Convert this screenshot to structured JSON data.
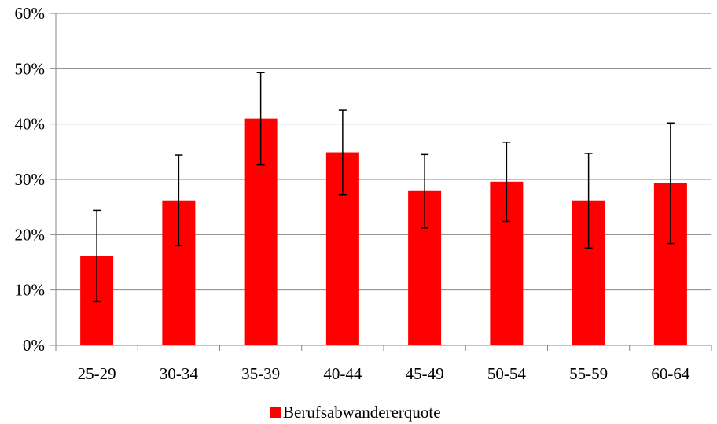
{
  "chart_data": {
    "type": "bar",
    "categories": [
      "25-29",
      "30-34",
      "35-39",
      "40-44",
      "45-49",
      "50-54",
      "55-59",
      "60-64"
    ],
    "series": [
      {
        "name": "Berufsabwandererquote",
        "values": [
          16.1,
          26.2,
          41.0,
          34.9,
          27.9,
          29.6,
          26.2,
          29.4
        ],
        "error_low": [
          7.9,
          18.0,
          32.6,
          27.2,
          21.2,
          22.4,
          17.6,
          18.4
        ],
        "error_high": [
          24.4,
          34.4,
          49.3,
          42.5,
          34.5,
          36.7,
          34.7,
          40.2
        ],
        "color": "#ff0000"
      }
    ],
    "y_ticks": [
      "0%",
      "10%",
      "20%",
      "30%",
      "40%",
      "50%",
      "60%"
    ],
    "ylim": [
      0,
      60
    ],
    "grid": true,
    "legend_position": "bottom",
    "title": "",
    "xlabel": "",
    "ylabel": ""
  }
}
